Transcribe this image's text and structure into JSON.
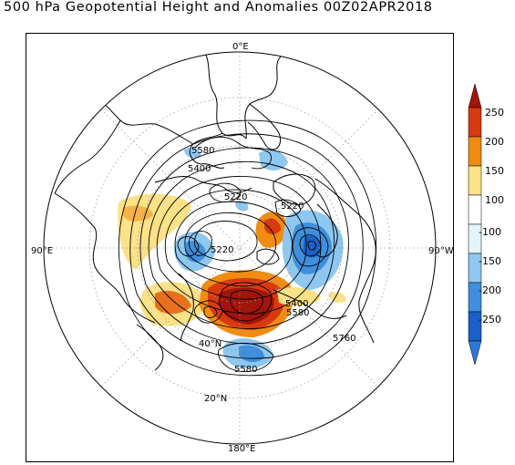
{
  "title": "500 hPa Geopotential Height and Anomalies 00Z02APR2018",
  "map": {
    "projection": "north polar stereographic",
    "longitude_labels": {
      "top": "0°E",
      "left": "90°E",
      "right": "90°W",
      "bottom": "180°E"
    },
    "latitude_labels": [
      "40°N",
      "20°N"
    ],
    "contour_labels": [
      "5580",
      "5400",
      "5220",
      "5220",
      "5220",
      "5400",
      "5580",
      "5760",
      "5580"
    ],
    "colors": {
      "continents": "#000000",
      "contours": "#000000",
      "grid": "#9a9a9a"
    }
  },
  "colorbar": {
    "levels": [
      "250",
      "200",
      "150",
      "100",
      "-100",
      "-150",
      "-200",
      "-250"
    ],
    "colors": [
      "#a3140a",
      "#d83a0f",
      "#f08c12",
      "#fbe187",
      "#ffffff",
      "#e3f5fb",
      "#8ec7ef",
      "#3f8fdc",
      "#1a60c8",
      "#2e78d8"
    ]
  }
}
